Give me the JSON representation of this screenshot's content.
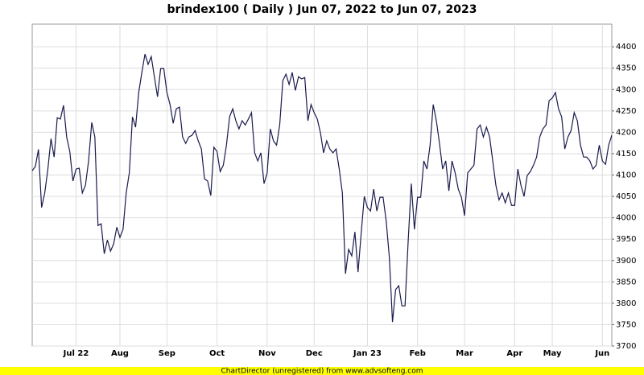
{
  "chart_data": {
    "type": "line",
    "title": "brindex100 ( Daily ) Jun 07, 2022 to Jun 07, 2023",
    "footer": "ChartDirector (unregistered) from www.advsofteng.com",
    "categories": [
      null,
      null,
      null,
      null,
      null,
      null,
      null,
      null,
      null,
      null,
      null,
      null,
      null,
      null,
      "Jul 22",
      null,
      null,
      null,
      null,
      null,
      null,
      null,
      null,
      null,
      null,
      null,
      null,
      null,
      "Aug",
      null,
      null,
      null,
      null,
      null,
      null,
      null,
      null,
      null,
      null,
      null,
      null,
      null,
      null,
      "Sep",
      null,
      null,
      null,
      null,
      null,
      null,
      null,
      null,
      null,
      null,
      null,
      null,
      null,
      null,
      null,
      "Oct",
      null,
      null,
      null,
      null,
      null,
      null,
      null,
      null,
      null,
      null,
      null,
      null,
      null,
      null,
      null,
      "Nov",
      null,
      null,
      null,
      null,
      null,
      null,
      null,
      null,
      null,
      null,
      null,
      null,
      null,
      null,
      "Dec",
      null,
      null,
      null,
      null,
      null,
      null,
      null,
      null,
      null,
      null,
      null,
      null,
      null,
      null,
      null,
      null,
      "Jan 23",
      null,
      null,
      null,
      null,
      null,
      null,
      null,
      null,
      null,
      null,
      null,
      null,
      null,
      null,
      null,
      "Feb",
      null,
      null,
      null,
      null,
      null,
      null,
      null,
      null,
      null,
      null,
      null,
      null,
      null,
      null,
      "Mar",
      null,
      null,
      null,
      null,
      null,
      null,
      null,
      null,
      null,
      null,
      null,
      null,
      null,
      null,
      null,
      "Apr",
      null,
      null,
      null,
      null,
      null,
      null,
      null,
      null,
      null,
      null,
      null,
      "May",
      null,
      null,
      null,
      null,
      null,
      null,
      null,
      null,
      null,
      null,
      null,
      null,
      null,
      null,
      null,
      "Jun",
      null,
      null,
      null
    ],
    "series": [
      {
        "color": "#1a1a4e",
        "values": [
          4110,
          4120,
          4160,
          4024,
          4058,
          4114,
          4185,
          4142,
          4234,
          4231,
          4263,
          4189,
          4155,
          4086,
          4114,
          4116,
          4058,
          4076,
          4133,
          4223,
          4189,
          3982,
          3986,
          3916,
          3948,
          3922,
          3939,
          3978,
          3954,
          3973,
          4058,
          4105,
          4236,
          4212,
          4293,
          4340,
          4383,
          4359,
          4377,
          4330,
          4283,
          4349,
          4349,
          4293,
          4265,
          4221,
          4255,
          4259,
          4189,
          4174,
          4189,
          4193,
          4204,
          4180,
          4161,
          4091,
          4086,
          4052,
          4165,
          4155,
          4108,
          4123,
          4170,
          4236,
          4255,
          4227,
          4208,
          4227,
          4217,
          4231,
          4246,
          4152,
          4133,
          4152,
          4080,
          4105,
          4208,
          4180,
          4170,
          4217,
          4321,
          4336,
          4312,
          4340,
          4298,
          4330,
          4325,
          4328,
          4227,
          4265,
          4246,
          4231,
          4199,
          4152,
          4180,
          4161,
          4152,
          4161,
          4114,
          4058,
          3869,
          3926,
          3911,
          3967,
          3873,
          3963,
          4050,
          4024,
          4016,
          4067,
          4016,
          4048,
          4048,
          3992,
          3907,
          3756,
          3832,
          3841,
          3794,
          3794,
          3945,
          4080,
          3973,
          4048,
          4048,
          4133,
          4114,
          4170,
          4265,
          4227,
          4174,
          4114,
          4133,
          4063,
          4133,
          4105,
          4067,
          4048,
          4005,
          4105,
          4114,
          4123,
          4208,
          4217,
          4189,
          4212,
          4189,
          4133,
          4076,
          4042,
          4058,
          4035,
          4058,
          4029,
          4029,
          4114,
          4076,
          4050,
          4099,
          4108,
          4123,
          4142,
          4189,
          4208,
          4217,
          4274,
          4280,
          4293,
          4255,
          4236,
          4161,
          4189,
          4204,
          4246,
          4227,
          4170,
          4142,
          4142,
          4133,
          4114,
          4123,
          4170,
          4133,
          4125,
          4170,
          4193
        ]
      }
    ],
    "ylim": [
      3700,
      4453
    ],
    "yticks": [
      3700,
      3750,
      3800,
      3850,
      3900,
      3950,
      4000,
      4050,
      4100,
      4150,
      4200,
      4250,
      4300,
      4350,
      4400
    ],
    "grid": true
  }
}
